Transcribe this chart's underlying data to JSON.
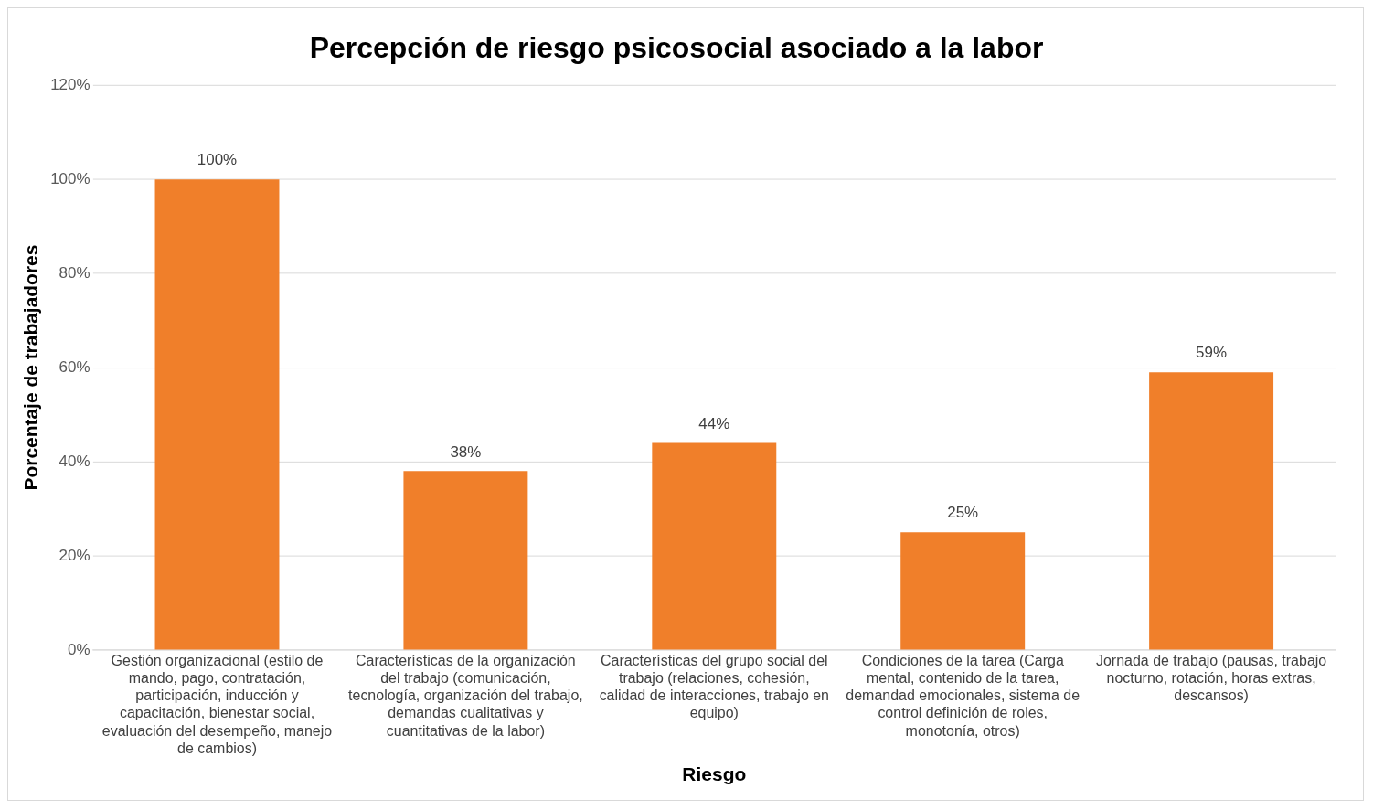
{
  "chart_data": {
    "type": "bar",
    "title": "Percepción de riesgo psicosocial asociado a la labor",
    "xlabel": "Riesgo",
    "ylabel": "Porcentaje de trabajadores",
    "categories": [
      "Gestión organizacional (estilo de mando, pago, contratación, participación, inducción y capacitación, bienestar social, evaluación del desempeño, manejo de cambios)",
      "Características de la organización del trabajo (comunicación, tecnología, organización del trabajo, demandas cualitativas y cuantitativas de la labor)",
      "Características del grupo social del trabajo (relaciones, cohesión, calidad de interacciones, trabajo en equipo)",
      "Condiciones de la tarea (Carga mental, contenido de la tarea, demandad emocionales, sistema de control definición de roles, monotonía, otros)",
      "Jornada de trabajo (pausas, trabajo nocturno, rotación, horas extras, descansos)"
    ],
    "values": [
      100,
      38,
      44,
      25,
      59
    ],
    "value_labels": [
      "100%",
      "38%",
      "44%",
      "25%",
      "59%"
    ],
    "color": "#f07f2a",
    "ylim": [
      0,
      120
    ],
    "yticks": [
      {
        "value": 0,
        "label": "0%"
      },
      {
        "value": 20,
        "label": "20%"
      },
      {
        "value": 40,
        "label": "40%"
      },
      {
        "value": 60,
        "label": "60%"
      },
      {
        "value": 80,
        "label": "80%"
      },
      {
        "value": 100,
        "label": "100%"
      },
      {
        "value": 120,
        "label": "120%"
      }
    ],
    "grid": "y",
    "legend": false
  }
}
